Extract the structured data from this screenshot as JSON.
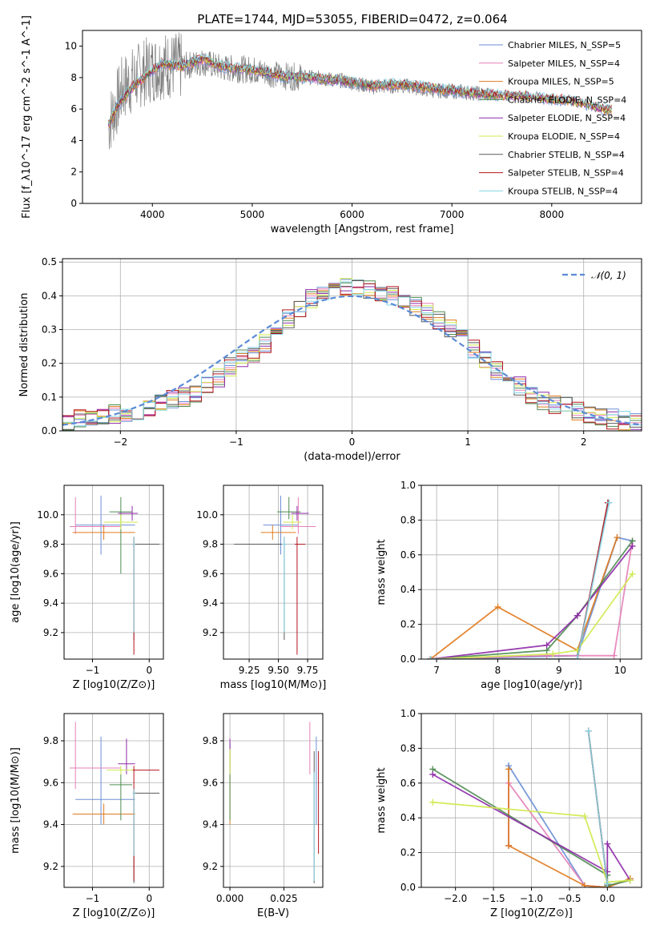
{
  "figure_title": "PLATE=1744, MJD=53055, FIBERID=0472, z=0.064",
  "series_colors": [
    "#6b8fd6",
    "#e67fb8",
    "#e07b1f",
    "#4f8c52",
    "#8e2ba8",
    "#cfea4f",
    "#5a5a5a",
    "#b5141c",
    "#86d6e6"
  ],
  "chart_data": [
    {
      "type": "line",
      "xlabel": "wavelength [Angstrom, rest frame]",
      "ylabel": "Flux [f_λ10^-17 erg cm^-2 s^-1 A^-1]",
      "xlim": [
        3300,
        8900
      ],
      "ylim": [
        0,
        11
      ],
      "xticks": [
        "4000",
        "5000",
        "6000",
        "7000",
        "8000"
      ],
      "yticks": [
        "0",
        "2",
        "4",
        "6",
        "8",
        "10"
      ],
      "legend_location": "upper right",
      "legend": [
        "Chabrier MILES, N_SSP=5",
        "Salpeter MILES, N_SSP=4",
        "Kroupa MILES, N_SSP=5",
        "Chabrier ELODIE, N_SSP=4",
        "Salpeter ELODIE, N_SSP=4",
        "Kroupa ELODIE, N_SSP=4",
        "Chabrier STELIB, N_SSP=4",
        "Salpeter STELIB, N_SSP=4",
        "Kroupa STELIB, N_SSP=4"
      ],
      "data_spectrum": {
        "x": [
          3560,
          3700,
          3900,
          4100,
          4300,
          4500,
          4700,
          5000,
          5300,
          5600,
          5900,
          6200,
          6500,
          6800,
          7100,
          7400
        ],
        "y": [
          5.0,
          7.3,
          8.3,
          8.8,
          8.7,
          9.0,
          8.6,
          8.5,
          8.1,
          8.0,
          7.8,
          7.4,
          7.5,
          7.2,
          7.1,
          6.9
        ]
      },
      "model_spectrum": {
        "x": [
          3560,
          3650,
          3800,
          3950,
          4100,
          4300,
          4500,
          4700,
          5000,
          5300,
          5600,
          5900,
          6200,
          6500,
          6800,
          7100,
          7400,
          7800,
          8200,
          8600
        ],
        "y": [
          5.0,
          6.2,
          7.4,
          8.2,
          8.9,
          8.7,
          9.2,
          8.7,
          8.5,
          8.1,
          8.0,
          7.8,
          7.5,
          7.6,
          7.3,
          7.1,
          6.9,
          6.8,
          6.5,
          5.9
        ]
      }
    },
    {
      "type": "step",
      "xlabel": "(data-model)/error",
      "ylabel": "Normed distribution",
      "xlim": [
        -2.5,
        2.5
      ],
      "ylim": [
        0,
        0.51
      ],
      "xticks": [
        "−2",
        "−1",
        "0",
        "1",
        "2"
      ],
      "yticks": [
        "0.0",
        "0.1",
        "0.2",
        "0.3",
        "0.4",
        "0.5"
      ],
      "legend": [
        "𝒩(0, 1)"
      ],
      "legend_location": "upper right",
      "bin_edges": [
        -2.5,
        -2.4,
        -2.3,
        -2.2,
        -2.1,
        -2.0,
        -1.9,
        -1.8,
        -1.7,
        -1.6,
        -1.5,
        -1.4,
        -1.3,
        -1.2,
        -1.1,
        -1.0,
        -0.9,
        -0.8,
        -0.7,
        -0.6,
        -0.5,
        -0.4,
        -0.3,
        -0.2,
        -0.1,
        0.0,
        0.1,
        0.2,
        0.3,
        0.4,
        0.5,
        0.6,
        0.7,
        0.8,
        0.9,
        1.0,
        1.1,
        1.2,
        1.3,
        1.4,
        1.5,
        1.6,
        1.7,
        1.8,
        1.9,
        2.0,
        2.1,
        2.2,
        2.3,
        2.4,
        2.5
      ],
      "histogram": [
        0.02,
        0.035,
        0.035,
        0.04,
        0.05,
        0.055,
        0.06,
        0.07,
        0.08,
        0.09,
        0.1,
        0.11,
        0.14,
        0.16,
        0.19,
        0.21,
        0.23,
        0.26,
        0.3,
        0.33,
        0.36,
        0.39,
        0.41,
        0.42,
        0.43,
        0.43,
        0.42,
        0.41,
        0.4,
        0.39,
        0.37,
        0.35,
        0.33,
        0.3,
        0.28,
        0.24,
        0.21,
        0.18,
        0.16,
        0.13,
        0.11,
        0.09,
        0.08,
        0.07,
        0.06,
        0.05,
        0.045,
        0.035,
        0.03,
        0.025
      ]
    },
    {
      "type": "errorbar",
      "xlabel": "Z [log10(Z/Z⊙)]",
      "ylabel": "age  [log10(age/yr)]",
      "xlim": [
        -1.5,
        0.25
      ],
      "ylim": [
        9.02,
        10.2
      ],
      "xticks": [
        "−1",
        "0"
      ],
      "yticks": [
        "9.2",
        "9.4",
        "9.6",
        "9.8",
        "10.0"
      ],
      "points": [
        {
          "x": -0.85,
          "y": 9.93,
          "xerr": [
            0.45,
            0.6
          ],
          "yerr": [
            0.2,
            0.2
          ]
        },
        {
          "x": -1.3,
          "y": 9.92,
          "xerr": [
            0.1,
            0.8
          ],
          "yerr": [
            0.05,
            0.2
          ]
        },
        {
          "x": -0.8,
          "y": 9.88,
          "xerr": [
            0.55,
            0.55
          ],
          "yerr": [
            0.05,
            0.05
          ]
        },
        {
          "x": -0.5,
          "y": 10.02,
          "xerr": [
            0.2,
            0.2
          ],
          "yerr": [
            0.42,
            0.1
          ]
        },
        {
          "x": -0.3,
          "y": 10.01,
          "xerr": [
            0.25,
            0.1
          ],
          "yerr": [
            0.05,
            0.05
          ]
        },
        {
          "x": -0.5,
          "y": 9.95,
          "xerr": [
            0.3,
            0.3
          ],
          "yerr": [
            0.05,
            0.05
          ]
        },
        {
          "x": -0.27,
          "y": 9.8,
          "xerr": [
            0.02,
            0.45
          ],
          "yerr": [
            0.65,
            0.05
          ]
        },
        {
          "x": -0.27,
          "y": 9.8,
          "xerr": [
            0.02,
            0.02
          ],
          "yerr": [
            0.75,
            0.05
          ]
        },
        {
          "x": -0.27,
          "y": 9.8,
          "xerr": [
            0.02,
            0.02
          ],
          "yerr": [
            0.6,
            0.05
          ]
        }
      ]
    },
    {
      "type": "errorbar",
      "xlabel": "mass [log10(M/M⊙)]",
      "ylabel": "",
      "xlim": [
        9.03,
        9.88
      ],
      "ylim": [
        9.02,
        10.2
      ],
      "xticks": [
        "9.25",
        "9.50",
        "9.75"
      ],
      "yticks": [
        "9.2",
        "9.4",
        "9.6",
        "9.8",
        "10.0"
      ],
      "points": [
        {
          "x": 9.52,
          "y": 9.93,
          "xerr": [
            0.15,
            0.15
          ],
          "yerr": [
            0.2,
            0.2
          ]
        },
        {
          "x": 9.67,
          "y": 9.92,
          "xerr": [
            0.15,
            0.15
          ],
          "yerr": [
            0.05,
            0.2
          ]
        },
        {
          "x": 9.45,
          "y": 9.88,
          "xerr": [
            0.1,
            0.2
          ],
          "yerr": [
            0.05,
            0.05
          ]
        },
        {
          "x": 9.59,
          "y": 10.02,
          "xerr": [
            0.1,
            0.1
          ],
          "yerr": [
            0.05,
            0.1
          ]
        },
        {
          "x": 9.66,
          "y": 10.01,
          "xerr": [
            0.05,
            0.1
          ],
          "yerr": [
            0.05,
            0.05
          ]
        },
        {
          "x": 9.62,
          "y": 9.95,
          "xerr": [
            0.08,
            0.08
          ],
          "yerr": [
            0.05,
            0.05
          ]
        },
        {
          "x": 9.55,
          "y": 9.8,
          "xerr": [
            0.43,
            0.02
          ],
          "yerr": [
            0.65,
            0.05
          ]
        },
        {
          "x": 9.66,
          "y": 9.8,
          "xerr": [
            0.02,
            0.07
          ],
          "yerr": [
            0.75,
            0.05
          ]
        },
        {
          "x": 9.55,
          "y": 9.8,
          "xerr": [
            0.02,
            0.02
          ],
          "yerr": [
            0.6,
            0.05
          ]
        }
      ]
    },
    {
      "type": "line",
      "xlabel": "age  [log10(age/yr)]",
      "ylabel": "mass weight",
      "xlim": [
        6.75,
        10.35
      ],
      "ylim": [
        0,
        1
      ],
      "xticks": [
        "7",
        "8",
        "9",
        "10"
      ],
      "yticks": [
        "0.0",
        "0.2",
        "0.4",
        "0.6",
        "0.8",
        "1.0"
      ],
      "series": [
        {
          "x": [
            6.9,
            9.3,
            9.95,
            10.2
          ],
          "y": [
            0.0,
            0.02,
            0.7,
            0.68
          ]
        },
        {
          "x": [
            6.9,
            8.8,
            9.9,
            10.2
          ],
          "y": [
            0.0,
            0.02,
            0.02,
            0.68
          ]
        },
        {
          "x": [
            6.9,
            8.0,
            9.3,
            9.95
          ],
          "y": [
            0.0,
            0.3,
            0.05,
            0.7
          ]
        },
        {
          "x": [
            6.9,
            8.8,
            9.3,
            10.2
          ],
          "y": [
            0.0,
            0.05,
            0.25,
            0.68
          ]
        },
        {
          "x": [
            6.9,
            8.8,
            9.3,
            10.2
          ],
          "y": [
            0.0,
            0.08,
            0.25,
            0.65
          ]
        },
        {
          "x": [
            6.9,
            8.9,
            9.3,
            10.2
          ],
          "y": [
            0.0,
            0.03,
            0.05,
            0.49
          ]
        },
        {
          "x": [
            6.9,
            9.3,
            9.8
          ],
          "y": [
            0.0,
            0.0,
            0.9
          ]
        },
        {
          "x": [
            6.9,
            9.3,
            9.8
          ],
          "y": [
            0.0,
            0.0,
            0.9
          ]
        },
        {
          "x": [
            6.9,
            9.3,
            9.82
          ],
          "y": [
            0.0,
            0.0,
            0.9
          ]
        }
      ]
    },
    {
      "type": "errorbar",
      "xlabel": "Z [log10(Z/Z⊙)]",
      "ylabel": "mass [log10(M/M⊙)]",
      "xlim": [
        -1.5,
        0.25
      ],
      "ylim": [
        9.1,
        9.93
      ],
      "xticks": [
        "−1",
        "0"
      ],
      "yticks": [
        "9.2",
        "9.4",
        "9.6",
        "9.8"
      ],
      "points": [
        {
          "x": -0.85,
          "y": 9.52,
          "xerr": [
            0.45,
            0.6
          ],
          "yerr": [
            0.12,
            0.3
          ]
        },
        {
          "x": -1.3,
          "y": 9.67,
          "xerr": [
            0.1,
            0.8
          ],
          "yerr": [
            0.1,
            0.22
          ]
        },
        {
          "x": -0.8,
          "y": 9.45,
          "xerr": [
            0.55,
            0.55
          ],
          "yerr": [
            0.05,
            0.05
          ]
        },
        {
          "x": -0.5,
          "y": 9.59,
          "xerr": [
            0.2,
            0.2
          ],
          "yerr": [
            0.17,
            0.05
          ]
        },
        {
          "x": -0.4,
          "y": 9.69,
          "xerr": [
            0.15,
            0.15
          ],
          "yerr": [
            0.05,
            0.12
          ]
        },
        {
          "x": -0.5,
          "y": 9.66,
          "xerr": [
            0.25,
            0.25
          ],
          "yerr": [
            0.02,
            0.02
          ]
        },
        {
          "x": -0.27,
          "y": 9.55,
          "xerr": [
            0.02,
            0.45
          ],
          "yerr": [
            0.43,
            0.02
          ]
        },
        {
          "x": -0.27,
          "y": 9.66,
          "xerr": [
            0.02,
            0.45
          ],
          "yerr": [
            0.53,
            0.02
          ]
        },
        {
          "x": -0.27,
          "y": 9.55,
          "xerr": [
            0.02,
            0.02
          ],
          "yerr": [
            0.3,
            0.02
          ]
        }
      ]
    },
    {
      "type": "errorbar",
      "xlabel": "E(B-V)",
      "ylabel": "",
      "xlim": [
        -0.003,
        0.043
      ],
      "ylim": [
        9.1,
        9.93
      ],
      "xticks": [
        "0.000",
        "0.025"
      ],
      "yticks": [
        "9.2",
        "9.4",
        "9.6",
        "9.8"
      ],
      "points": [
        {
          "x": 0.04,
          "y": 9.52,
          "xerr": [
            0,
            0
          ],
          "yerr": [
            0.12,
            0.3
          ]
        },
        {
          "x": 0.037,
          "y": 9.67,
          "xerr": [
            0,
            0
          ],
          "yerr": [
            0.03,
            0.22
          ]
        },
        {
          "x": 0.0,
          "y": 9.45,
          "xerr": [
            0,
            0
          ],
          "yerr": [
            0.05,
            0.3
          ]
        },
        {
          "x": 0.0,
          "y": 9.59,
          "xerr": [
            0,
            0
          ],
          "yerr": [
            0.17,
            0.2
          ]
        },
        {
          "x": 0.0,
          "y": 9.69,
          "xerr": [
            0,
            0
          ],
          "yerr": [
            0.05,
            0.12
          ]
        },
        {
          "x": 0.0,
          "y": 9.66,
          "xerr": [
            0,
            0
          ],
          "yerr": [
            0.02,
            0.1
          ]
        },
        {
          "x": 0.039,
          "y": 9.55,
          "xerr": [
            0,
            0
          ],
          "yerr": [
            0.43,
            0.2
          ]
        },
        {
          "x": 0.041,
          "y": 9.66,
          "xerr": [
            0,
            0
          ],
          "yerr": [
            0.4,
            0.09
          ]
        },
        {
          "x": 0.039,
          "y": 9.55,
          "xerr": [
            0,
            0
          ],
          "yerr": [
            0.42,
            0.1
          ]
        }
      ]
    },
    {
      "type": "line",
      "xlabel": "Z [log10(Z/Z⊙)]",
      "ylabel": "mass weight",
      "xlim": [
        -2.45,
        0.45
      ],
      "ylim": [
        0,
        1
      ],
      "xticks": [
        "−2.0",
        "−1.5",
        "−1.0",
        "−0.5",
        "0.0"
      ],
      "yticks": [
        "0.0",
        "0.2",
        "0.4",
        "0.6",
        "0.8",
        "1.0"
      ],
      "series": [
        {
          "x": [
            -1.3,
            -1.3,
            -0.3,
            0.0,
            0.3
          ],
          "y": [
            0.24,
            0.7,
            0.01,
            0.0,
            0.05
          ]
        },
        {
          "x": [
            -1.3,
            -1.3,
            -0.3,
            0.0,
            0.3
          ],
          "y": [
            0.24,
            0.6,
            0.01,
            0.0,
            0.05
          ]
        },
        {
          "x": [
            -1.3,
            -1.3,
            -0.3,
            0.0,
            0.3
          ],
          "y": [
            0.68,
            0.24,
            0.01,
            0.0,
            0.05
          ]
        },
        {
          "x": [
            -2.3,
            0.0,
            0.0,
            0.3
          ],
          "y": [
            0.68,
            0.07,
            0.01,
            0.04
          ]
        },
        {
          "x": [
            -2.3,
            0.0,
            0.0,
            0.3
          ],
          "y": [
            0.65,
            0.09,
            0.25,
            0.04
          ]
        },
        {
          "x": [
            -2.3,
            -0.3,
            0.0,
            0.3
          ],
          "y": [
            0.49,
            0.41,
            0.03,
            0.04
          ]
        },
        {
          "x": [
            -0.25,
            0.0
          ],
          "y": [
            0.9,
            0.02
          ]
        },
        {
          "x": [
            -0.25,
            0.0
          ],
          "y": [
            0.9,
            0.02
          ]
        },
        {
          "x": [
            -0.25,
            0.0
          ],
          "y": [
            0.9,
            0.02
          ]
        }
      ]
    }
  ]
}
